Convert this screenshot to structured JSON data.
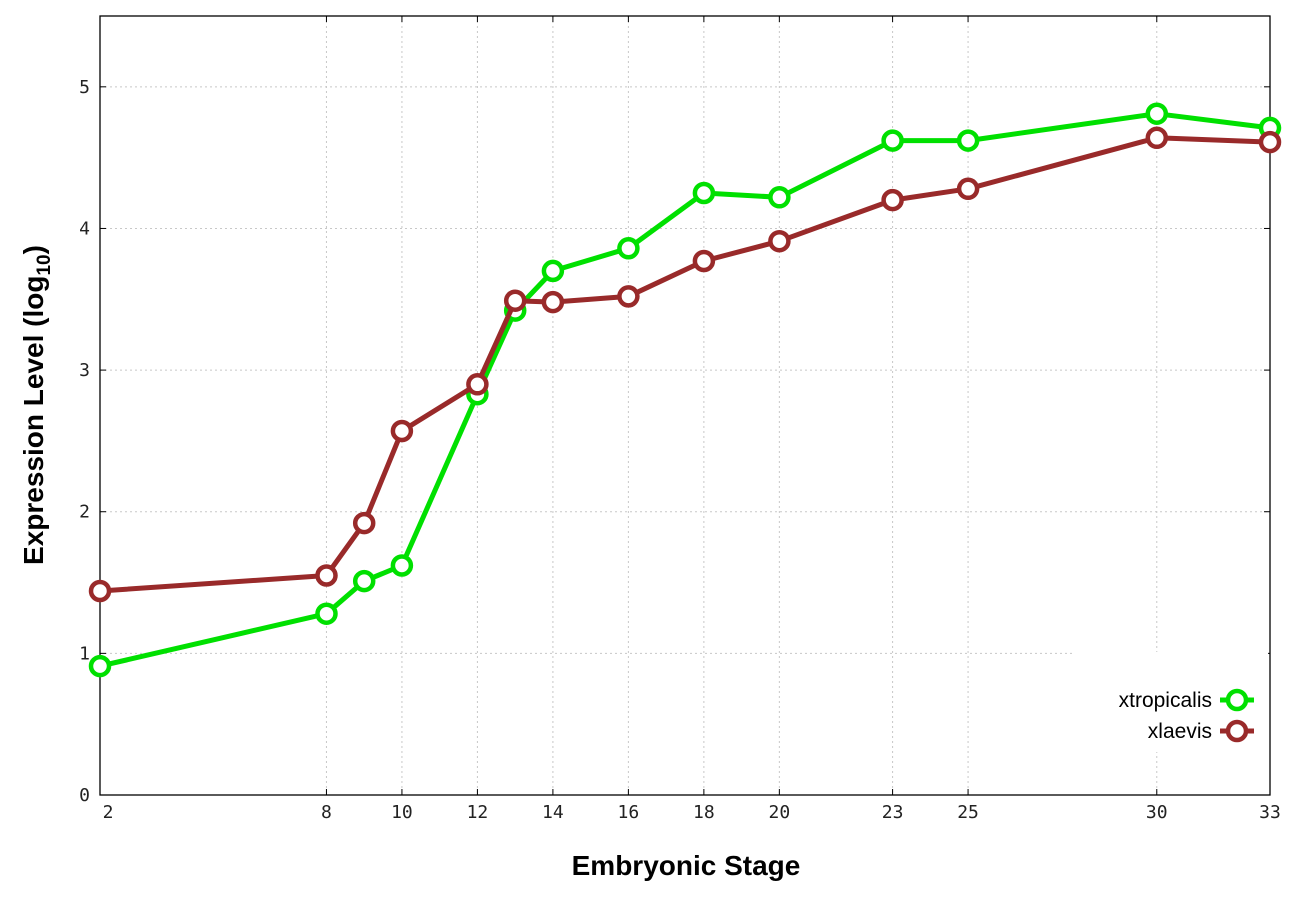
{
  "chart_data": {
    "type": "line",
    "xlabel": "Embryonic Stage",
    "ylabel_main": "Expression Level (log",
    "ylabel_sub": "10",
    "ylabel_close": ")",
    "x_ticks": [
      2,
      8,
      10,
      12,
      14,
      16,
      18,
      20,
      23,
      25,
      30,
      33
    ],
    "y_ticks": [
      0,
      1,
      2,
      3,
      4,
      5
    ],
    "xlim": [
      2,
      33
    ],
    "ylim": [
      0,
      5.5
    ],
    "grid": true,
    "legend_position": "bottom-right",
    "x": [
      2,
      8,
      9,
      10,
      12,
      13,
      14,
      16,
      18,
      20,
      23,
      25,
      30,
      33
    ],
    "series": [
      {
        "name": "xtropicalis",
        "color": "#00e000",
        "values": [
          0.91,
          1.28,
          1.51,
          1.62,
          2.83,
          3.42,
          3.7,
          3.86,
          4.25,
          4.22,
          4.62,
          4.62,
          4.81,
          4.71
        ]
      },
      {
        "name": "xlaevis",
        "color": "#992a2a",
        "values": [
          1.44,
          1.55,
          1.92,
          2.57,
          2.9,
          3.49,
          3.48,
          3.52,
          3.77,
          3.91,
          4.2,
          4.28,
          4.64,
          4.61
        ]
      }
    ]
  }
}
